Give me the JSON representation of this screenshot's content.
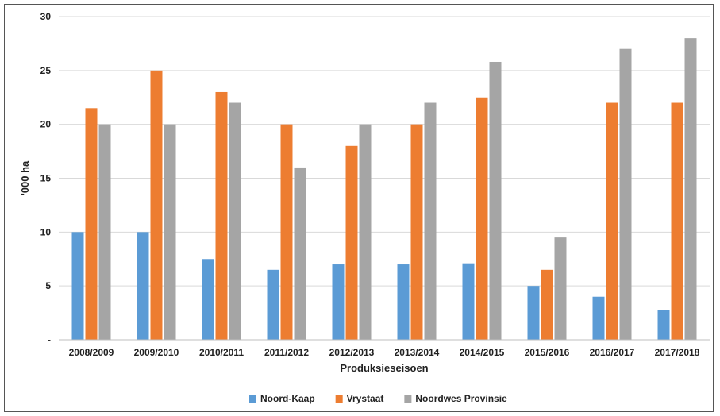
{
  "chart_data": {
    "type": "bar",
    "xlabel": "Produksieseisoen",
    "ylabel": "'000 ha",
    "ylim": [
      0,
      30
    ],
    "yticks": [
      0,
      5,
      10,
      15,
      20,
      25,
      30
    ],
    "ytick_labels": [
      "-",
      "5",
      "10",
      "15",
      "20",
      "25",
      "30"
    ],
    "grid": true,
    "legend_position": "bottom",
    "categories": [
      "2008/2009",
      "2009/2010",
      "2010/2011",
      "2011/2012",
      "2012/2013",
      "2013/2014",
      "2014/2015",
      "2015/2016",
      "2016/2017",
      "2017/2018"
    ],
    "series": [
      {
        "name": "Noord-Kaap",
        "color": "#5b9bd5",
        "values": [
          10,
          10,
          7.5,
          6.5,
          7,
          7,
          7.1,
          5,
          4,
          2.8
        ]
      },
      {
        "name": "Vrystaat",
        "color": "#ed7d31",
        "values": [
          21.5,
          25,
          23,
          20,
          18,
          20,
          22.5,
          6.5,
          22,
          22
        ]
      },
      {
        "name": "Noordwes Provinsie",
        "color": "#a5a5a5",
        "values": [
          20,
          20,
          22,
          16,
          20,
          22,
          25.8,
          9.5,
          27,
          28
        ]
      }
    ]
  }
}
